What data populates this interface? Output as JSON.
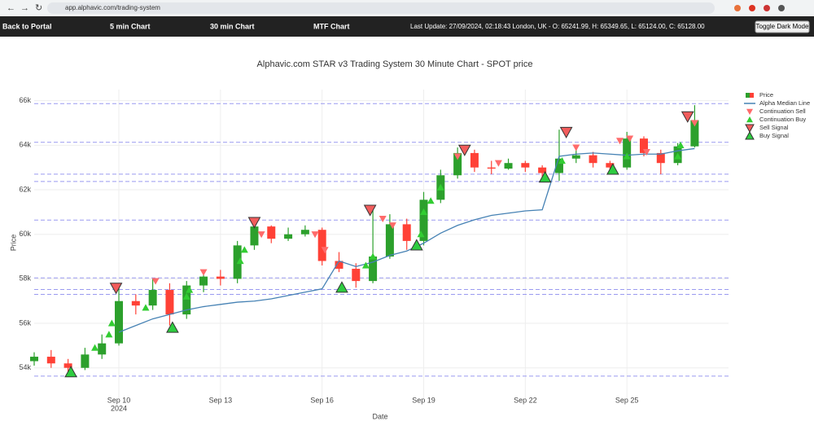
{
  "browser": {
    "url": "app.alphavic.com/trading-system"
  },
  "nav": {
    "items": [
      "Back to Portal",
      "5 min Chart",
      "30 min Chart",
      "MTF Chart"
    ],
    "last_update": "Last Update: 27/09/2024, 02:18:43 London, UK - O: 65241.99, H: 65349.65, L: 65124.00, C: 65128.00",
    "button": "Toggle Dark Mode"
  },
  "chart_data": {
    "type": "candlestick",
    "title": "Alphavic.com STAR v3 Trading System 30 Minute Chart - SPOT price",
    "x_label": "Date",
    "y_label": "Price",
    "xlim": [
      "2024-09-07 12:00",
      "2024-09-28 00:00"
    ],
    "xticks": [
      {
        "value": "2024-09-10 00:00",
        "label": "Sep 10"
      },
      {
        "value": "2024-09-13 00:00",
        "label": "Sep 13"
      },
      {
        "value": "2024-09-16 00:00",
        "label": "Sep 16"
      },
      {
        "value": "2024-09-19 00:00",
        "label": "Sep 19"
      },
      {
        "value": "2024-09-22 00:00",
        "label": "Sep 22"
      },
      {
        "value": "2024-09-25 00:00",
        "label": "Sep 25"
      }
    ],
    "xtick_year": "2024",
    "ylim": [
      52600,
      66500
    ],
    "yticks": [
      {
        "value": 54000,
        "label": "54k"
      },
      {
        "value": 56000,
        "label": "56k"
      },
      {
        "value": 58000,
        "label": "58k"
      },
      {
        "value": 60000,
        "label": "60k"
      },
      {
        "value": 62000,
        "label": "62k"
      },
      {
        "value": 64000,
        "label": "64k"
      },
      {
        "value": 66000,
        "label": "66k"
      }
    ],
    "grid": true,
    "levels": {
      "color": "#9a9af0",
      "values": [
        65870,
        64130,
        62700,
        62370,
        60640,
        58040,
        57520,
        57300,
        53630
      ]
    },
    "series": [
      {
        "name": "Price",
        "kind": "candlestick",
        "increasing_color": "#2ca02c",
        "decreasing_color": "#ff4136",
        "x": [
          "2024-09-07 12:00",
          "2024-09-08 00:00",
          "2024-09-08 12:00",
          "2024-09-09 00:00",
          "2024-09-09 12:00",
          "2024-09-10 00:00",
          "2024-09-10 12:00",
          "2024-09-11 00:00",
          "2024-09-11 12:00",
          "2024-09-12 00:00",
          "2024-09-12 12:00",
          "2024-09-13 00:00",
          "2024-09-13 12:00",
          "2024-09-14 00:00",
          "2024-09-14 12:00",
          "2024-09-15 00:00",
          "2024-09-15 12:00",
          "2024-09-16 00:00",
          "2024-09-16 12:00",
          "2024-09-17 00:00",
          "2024-09-17 12:00",
          "2024-09-18 00:00",
          "2024-09-18 12:00",
          "2024-09-19 00:00",
          "2024-09-19 12:00",
          "2024-09-20 00:00",
          "2024-09-20 12:00",
          "2024-09-21 00:00",
          "2024-09-21 12:00",
          "2024-09-22 00:00",
          "2024-09-22 12:00",
          "2024-09-23 00:00",
          "2024-09-23 12:00",
          "2024-09-24 00:00",
          "2024-09-24 12:00",
          "2024-09-25 00:00",
          "2024-09-25 12:00",
          "2024-09-26 00:00",
          "2024-09-26 12:00",
          "2024-09-27 00:00"
        ],
        "open": [
          54300,
          54500,
          54200,
          54000,
          54600,
          55100,
          57000,
          56800,
          57500,
          56400,
          57700,
          58100,
          58000,
          59500,
          60350,
          59800,
          60000,
          60200,
          58800,
          58450,
          57900,
          59000,
          60450,
          59700,
          61550,
          62650,
          63650,
          63000,
          62950,
          63200,
          63000,
          62750,
          63400,
          63550,
          63200,
          63000,
          64300,
          63650,
          63200,
          63950
        ],
        "high": [
          54700,
          54800,
          54400,
          54900,
          55500,
          57700,
          57300,
          58000,
          57800,
          57900,
          58400,
          58400,
          59700,
          60600,
          60400,
          60300,
          60400,
          60300,
          59200,
          58700,
          61200,
          60900,
          60700,
          61900,
          62900,
          63900,
          63800,
          63300,
          63400,
          63300,
          63100,
          64700,
          63900,
          63700,
          63300,
          64600,
          64400,
          63800,
          64100,
          65800
        ],
        "low": [
          54100,
          54000,
          53800,
          53900,
          54400,
          55000,
          56400,
          56600,
          55900,
          56200,
          57400,
          57700,
          57800,
          59300,
          59600,
          59700,
          59900,
          58600,
          58300,
          57600,
          57800,
          58900,
          59300,
          59500,
          61400,
          62500,
          62800,
          62700,
          62900,
          62800,
          62500,
          62400,
          63200,
          63000,
          62800,
          62900,
          63500,
          62700,
          63100,
          63900
        ],
        "close": [
          54500,
          54200,
          54000,
          54600,
          55100,
          57000,
          56800,
          57500,
          56400,
          57700,
          58100,
          58000,
          59500,
          60350,
          59800,
          60000,
          60200,
          58800,
          58450,
          57900,
          59000,
          60450,
          59700,
          61550,
          62650,
          63650,
          63000,
          62950,
          63200,
          63000,
          62750,
          63400,
          63550,
          63200,
          63000,
          64300,
          63650,
          63200,
          63950,
          65128
        ]
      },
      {
        "name": "Alpha Median Line",
        "kind": "line",
        "color": "#4682b4",
        "x": [
          "2024-09-07 12:00",
          "2024-09-08 00:00",
          "2024-09-08 12:00",
          "2024-09-09 00:00",
          "2024-09-09 12:00",
          "2024-09-10 00:00",
          "2024-09-10 12:00",
          "2024-09-11 00:00",
          "2024-09-11 12:00",
          "2024-09-12 00:00",
          "2024-09-12 12:00",
          "2024-09-13 00:00",
          "2024-09-13 12:00",
          "2024-09-14 00:00",
          "2024-09-14 12:00",
          "2024-09-15 00:00",
          "2024-09-15 12:00",
          "2024-09-16 00:00",
          "2024-09-16 12:00",
          "2024-09-17 00:00",
          "2024-09-17 12:00",
          "2024-09-18 00:00",
          "2024-09-18 12:00",
          "2024-09-19 00:00",
          "2024-09-19 12:00",
          "2024-09-20 00:00",
          "2024-09-20 12:00",
          "2024-09-21 00:00",
          "2024-09-21 12:00",
          "2024-09-22 00:00",
          "2024-09-22 12:00",
          "2024-09-23 00:00",
          "2024-09-23 12:00",
          "2024-09-24 00:00",
          "2024-09-24 12:00",
          "2024-09-25 00:00",
          "2024-09-25 12:00",
          "2024-09-26 00:00",
          "2024-09-26 12:00",
          "2024-09-27 00:00"
        ],
        "values": [
          null,
          null,
          null,
          null,
          null,
          55600,
          55900,
          56200,
          56400,
          56600,
          56750,
          56850,
          56950,
          57000,
          57100,
          57250,
          57400,
          57550,
          58800,
          58550,
          58750,
          59050,
          59250,
          59600,
          60050,
          60400,
          60650,
          60850,
          60950,
          61050,
          61100,
          63500,
          63600,
          63650,
          63600,
          63550,
          63600,
          63600,
          63750,
          63850
        ]
      },
      {
        "name": "Continuation Sell",
        "kind": "marker",
        "symbol": "down",
        "color": "#ff6b6b",
        "x": [
          "2024-09-11 02:00",
          "2024-09-12 12:00",
          "2024-09-14 05:00",
          "2024-09-15 19:00",
          "2024-09-16 02:00",
          "2024-09-17 19:00",
          "2024-09-18 02:00",
          "2024-09-20 00:00",
          "2024-09-21 05:00",
          "2024-09-23 12:00",
          "2024-09-24 19:00",
          "2024-09-25 02:00",
          "2024-09-25 14:00",
          "2024-09-26 19:00",
          "2024-09-27 00:00"
        ],
        "values": [
          57900,
          58300,
          60000,
          60000,
          59300,
          60700,
          60400,
          63500,
          63200,
          63900,
          64200,
          64300,
          63700,
          65200,
          65000
        ]
      },
      {
        "name": "Continuation Buy",
        "kind": "marker",
        "symbol": "up",
        "color": "#32cd32",
        "x": [
          "2024-09-09 07:00",
          "2024-09-09 17:00",
          "2024-09-09 19:00",
          "2024-09-10 19:00",
          "2024-09-12 00:00",
          "2024-09-12 02:00",
          "2024-09-13 14:00",
          "2024-09-13 17:00",
          "2024-09-17 07:00",
          "2024-09-17 12:00",
          "2024-09-18 22:00",
          "2024-09-19 00:00",
          "2024-09-19 05:00",
          "2024-09-19 12:00",
          "2024-09-23 02:00",
          "2024-09-25 00:00",
          "2024-09-26 12:00",
          "2024-09-26 14:00"
        ],
        "values": [
          54900,
          55500,
          56000,
          56700,
          57200,
          57500,
          58800,
          59300,
          58600,
          59000,
          60000,
          61000,
          61500,
          62100,
          63300,
          63500,
          63500,
          64000
        ]
      },
      {
        "name": "Sell Signal",
        "kind": "marker",
        "symbol": "down",
        "color": "#f25c5c",
        "outline": "#333333",
        "x": [
          "2024-09-09 22:00",
          "2024-09-14 00:00",
          "2024-09-17 10:00",
          "2024-09-20 05:00",
          "2024-09-23 05:00",
          "2024-09-26 19:00"
        ],
        "values": [
          57600,
          60550,
          61100,
          63800,
          64600,
          65300
        ]
      },
      {
        "name": "Buy Signal",
        "kind": "marker",
        "symbol": "up",
        "color": "#2ecc40",
        "outline": "#333333",
        "x": [
          "2024-09-08 14:00",
          "2024-09-11 14:00",
          "2024-09-16 14:00",
          "2024-09-18 19:00",
          "2024-09-22 14:00",
          "2024-09-24 14:00"
        ],
        "values": [
          53800,
          55800,
          57600,
          59500,
          62550,
          62900
        ]
      }
    ]
  }
}
